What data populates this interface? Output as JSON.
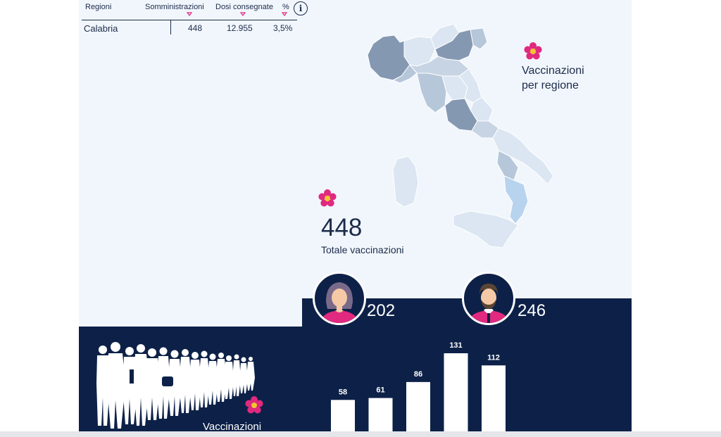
{
  "table": {
    "headers": [
      "Regioni",
      "Somministrazioni",
      "Dosi consegnate",
      "%"
    ],
    "row": {
      "region": "Calabria",
      "administrations": "448",
      "doses_delivered": "12.955",
      "percent": "3,5%"
    },
    "info_label": "i"
  },
  "map": {
    "title_line1": "Vaccinazioni",
    "title_line2": "per regione"
  },
  "total": {
    "value": "448",
    "label": "Totale vaccinazioni"
  },
  "gender": {
    "female_value": "202",
    "male_value": "246"
  },
  "crowd": {
    "label": "Vaccinazioni"
  },
  "chart_data": {
    "type": "bar",
    "values": [
      58,
      61,
      86,
      131,
      112
    ],
    "ylim": [
      0,
      131
    ]
  },
  "colors": {
    "navy": "#0d2148",
    "panel": "#f1f6fc",
    "accent_pink": "#e0297f",
    "map_light": "#dbe6f2",
    "map_mid": "#b7c7da",
    "map_dark": "#8598b2",
    "map_highlight": "#b7d3ee"
  },
  "icons": [
    "info-icon",
    "flower-icon",
    "woman-avatar-icon",
    "man-avatar-icon",
    "crowd-silhouette-icon",
    "sort-arrow-icon"
  ]
}
